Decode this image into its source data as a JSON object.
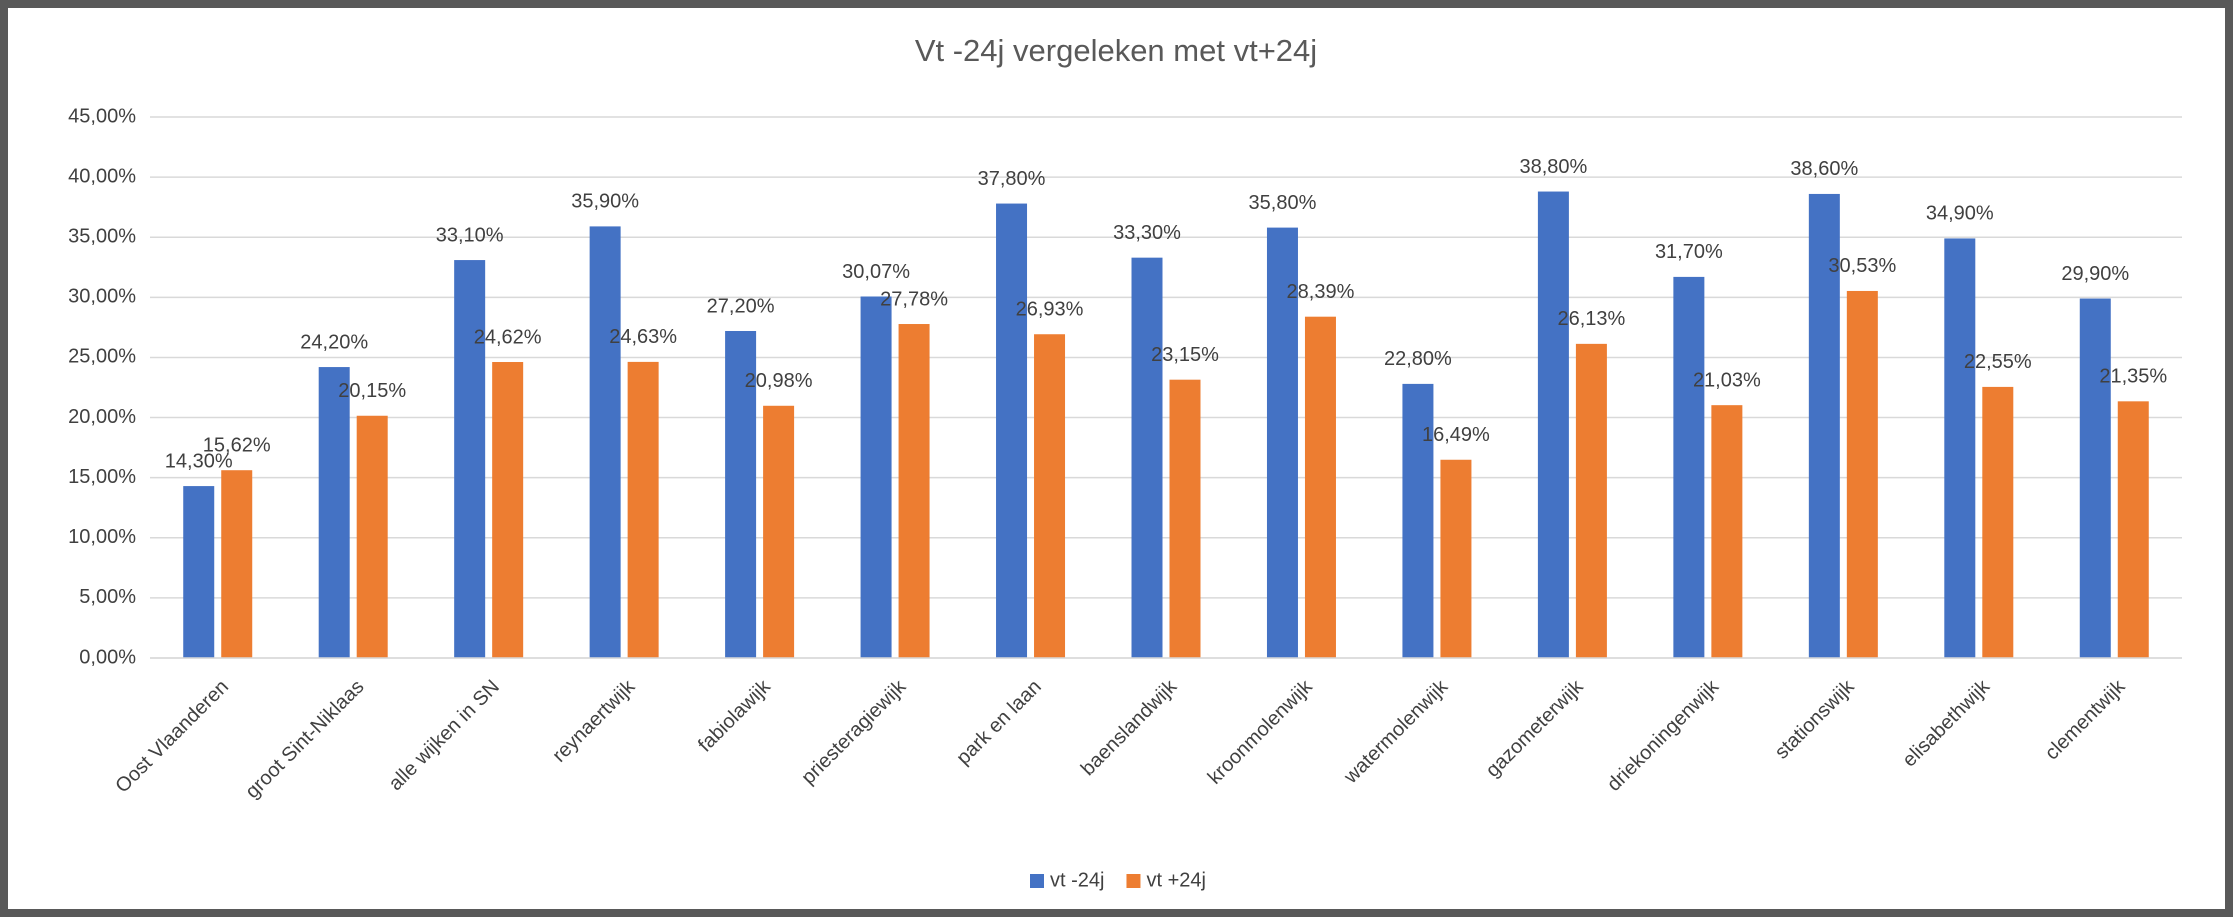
{
  "chart_data": {
    "type": "bar",
    "title": "Vt -24j vergeleken met vt+24j",
    "categories": [
      "Oost Vlaanderen",
      "groot Sint-Niklaas",
      "alle wijken in SN",
      "reynaertwijk",
      "fabiolawijk",
      "priesteragiewijk",
      "park en laan",
      "baenslandwijk",
      "kroonmolenwijk",
      "watermolenwijk",
      "gazometerwijk",
      "driekoningenwijk",
      "stationswijk",
      "elisabethwijk",
      "clementwijk"
    ],
    "series": [
      {
        "name": "vt -24j",
        "color": "#4472c4",
        "values": [
          14.3,
          24.2,
          33.1,
          35.9,
          27.2,
          30.07,
          37.8,
          33.3,
          35.8,
          22.8,
          38.8,
          31.7,
          38.6,
          34.9,
          29.9
        ],
        "value_labels": [
          "14,30%",
          "24,20%",
          "33,10%",
          "35,90%",
          "27,20%",
          "30,07%",
          "37,80%",
          "33,30%",
          "35,80%",
          "22,80%",
          "38,80%",
          "31,70%",
          "38,60%",
          "34,90%",
          "29,90%"
        ]
      },
      {
        "name": "vt +24j",
        "color": "#ed7d31",
        "values": [
          15.62,
          20.15,
          24.62,
          24.63,
          20.98,
          27.78,
          26.93,
          23.15,
          28.39,
          16.49,
          26.13,
          21.03,
          30.53,
          22.55,
          21.35
        ],
        "value_labels": [
          "15,62%",
          "20,15%",
          "24,62%",
          "24,63%",
          "20,98%",
          "27,78%",
          "26,93%",
          "23,15%",
          "28,39%",
          "16,49%",
          "26,13%",
          "21,03%",
          "30,53%",
          "22,55%",
          "21,35%"
        ]
      }
    ],
    "ylim": [
      0,
      45
    ],
    "yticks": [
      {
        "value": 0,
        "label": "0,00%"
      },
      {
        "value": 5,
        "label": "5,00%"
      },
      {
        "value": 10,
        "label": "10,00%"
      },
      {
        "value": 15,
        "label": "15,00%"
      },
      {
        "value": 20,
        "label": "20,00%"
      },
      {
        "value": 25,
        "label": "25,00%"
      },
      {
        "value": 30,
        "label": "30,00%"
      },
      {
        "value": 35,
        "label": "35,00%"
      },
      {
        "value": 40,
        "label": "40,00%"
      },
      {
        "value": 45,
        "label": "45,00%"
      }
    ],
    "grid": true,
    "legend": "bottom"
  }
}
